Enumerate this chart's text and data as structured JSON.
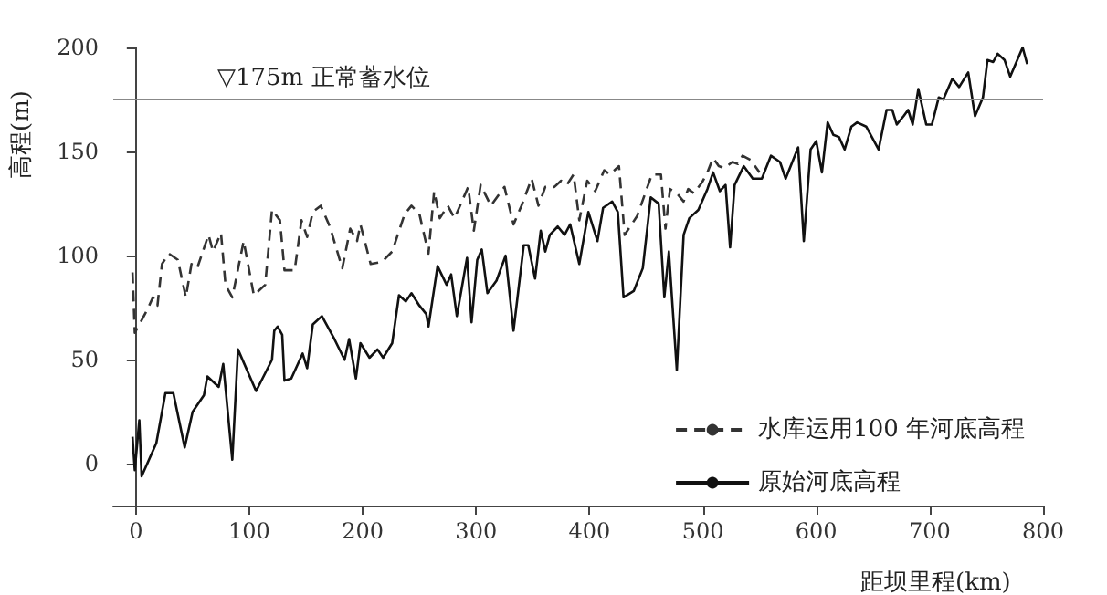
{
  "chart_data": {
    "type": "line",
    "xlabel": "距坝里程(km)",
    "ylabel": "高程(m)",
    "xlim": [
      -20,
      800
    ],
    "ylim": [
      -20,
      200
    ],
    "xticks": [
      0,
      100,
      200,
      300,
      400,
      500,
      600,
      700,
      800
    ],
    "yticks": [
      0,
      50,
      100,
      150,
      200
    ],
    "grid": false,
    "legend": "bottom right",
    "marker": "none",
    "ref_lines": [
      {
        "axis": "y",
        "value": 175,
        "label": "▽175m 正常蓄水位",
        "color": "#888888"
      }
    ],
    "series": [
      {
        "name": "水库运用100 年河底高程",
        "color": "#333333",
        "line_style": "dashed",
        "x": [
          -3,
          -1,
          10,
          15,
          19,
          23,
          29,
          37,
          44,
          49,
          54,
          59,
          64,
          68,
          75,
          79,
          85,
          95,
          104,
          114,
          120,
          127,
          131,
          140,
          146,
          151,
          156,
          163,
          171,
          182,
          189,
          195,
          198,
          207,
          217,
          226,
          237,
          243,
          250,
          258,
          263,
          268,
          275,
          281,
          293,
          298,
          304,
          313,
          325,
          333,
          340,
          349,
          355,
          361,
          369,
          375,
          380,
          386,
          391,
          398,
          405,
          413,
          418,
          426,
          431,
          442,
          455,
          463,
          467,
          471,
          477,
          483,
          487,
          492,
          499,
          504,
          509,
          514,
          519,
          526,
          531,
          535,
          542,
          550
        ],
        "values": [
          92,
          63,
          74,
          80,
          76,
          96,
          101,
          98,
          80,
          96,
          94,
          102,
          110,
          102,
          111,
          86,
          80,
          107,
          81,
          86,
          122,
          117,
          93,
          93,
          117,
          109,
          121,
          124,
          114,
          94,
          113,
          107,
          115,
          96,
          97,
          102,
          120,
          124,
          120,
          101,
          131,
          118,
          124,
          118,
          133,
          112,
          134,
          124,
          133,
          115,
          124,
          137,
          124,
          133,
          133,
          136,
          134,
          139,
          117,
          136,
          131,
          141,
          139,
          143,
          110,
          119,
          139,
          139,
          113,
          132,
          130,
          126,
          132,
          130,
          135,
          140,
          147,
          143,
          142,
          145,
          144,
          148,
          146,
          140
        ]
      },
      {
        "name": "原始河底高程",
        "color": "#111111",
        "line_style": "solid",
        "x": [
          -3,
          -1,
          3,
          5,
          18,
          26,
          33,
          43,
          50,
          60,
          63,
          73,
          77,
          85,
          90,
          106,
          120,
          122,
          125,
          129,
          131,
          137,
          147,
          151,
          156,
          164,
          175,
          184,
          188,
          194,
          198,
          206,
          213,
          218,
          226,
          232,
          238,
          243,
          250,
          256,
          258,
          266,
          274,
          278,
          283,
          292,
          296,
          301,
          305,
          310,
          318,
          326,
          333,
          342,
          346,
          352,
          357,
          361,
          365,
          372,
          378,
          383,
          391,
          399,
          407,
          412,
          420,
          425,
          430,
          439,
          447,
          454,
          461,
          466,
          470,
          477,
          483,
          488,
          496,
          504,
          509,
          515,
          520,
          524,
          528,
          536,
          544,
          552,
          560,
          568,
          573,
          584,
          589,
          595,
          600,
          605,
          610,
          615,
          620,
          625,
          631,
          636,
          644,
          655,
          662,
          667,
          671,
          677,
          681,
          685,
          690,
          697,
          702,
          708,
          712,
          720,
          726,
          734,
          740,
          747,
          751,
          756,
          760,
          766,
          771,
          782,
          786
        ],
        "values": [
          13,
          -3,
          21,
          -6,
          10,
          34,
          34,
          8,
          25,
          33,
          42,
          37,
          48,
          2,
          55,
          35,
          50,
          64,
          66,
          62,
          40,
          41,
          53,
          46,
          67,
          71,
          60,
          50,
          60,
          41,
          58,
          51,
          55,
          51,
          58,
          81,
          78,
          82,
          76,
          72,
          66,
          95,
          86,
          91,
          71,
          99,
          68,
          98,
          103,
          82,
          88,
          100,
          64,
          105,
          105,
          89,
          112,
          102,
          110,
          114,
          110,
          115,
          96,
          121,
          107,
          123,
          126,
          121,
          80,
          83,
          94,
          128,
          125,
          80,
          102,
          45,
          110,
          118,
          122,
          132,
          140,
          131,
          134,
          104,
          134,
          143,
          137,
          137,
          148,
          145,
          137,
          152,
          107,
          151,
          155,
          140,
          164,
          158,
          157,
          151,
          162,
          164,
          162,
          151,
          170,
          170,
          163,
          167,
          170,
          163,
          180,
          163,
          163,
          176,
          175,
          185,
          181,
          188,
          167,
          176,
          194,
          193,
          197,
          194,
          186,
          200,
          192
        ]
      }
    ]
  }
}
